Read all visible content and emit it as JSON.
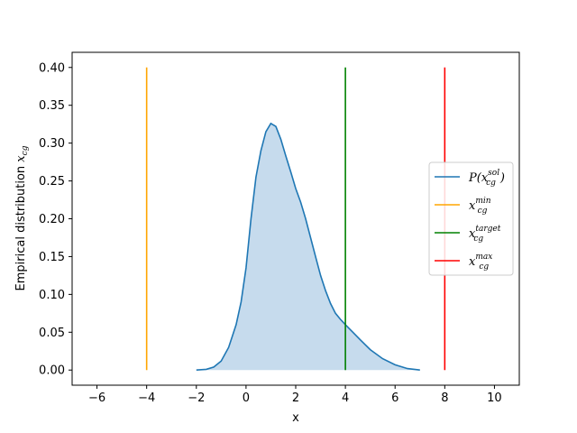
{
  "chart_data": {
    "type": "area",
    "xlabel": "x",
    "ylabel": "Empirical distribution x_cg",
    "ylabel_main": "Empirical distribution ",
    "ylabel_var": "x",
    "ylabel_sub": "cg",
    "xlim": [
      -7,
      11
    ],
    "ylim": [
      -0.02,
      0.42
    ],
    "xticks": [
      -6,
      -4,
      -2,
      0,
      2,
      4,
      6,
      8,
      10
    ],
    "xtick_labels": [
      "−6",
      "−4",
      "−2",
      "0",
      "2",
      "4",
      "6",
      "8",
      "10"
    ],
    "yticks": [
      0.0,
      0.05,
      0.1,
      0.15,
      0.2,
      0.25,
      0.3,
      0.35,
      0.4
    ],
    "ytick_labels": [
      "0.00",
      "0.05",
      "0.10",
      "0.15",
      "0.20",
      "0.25",
      "0.30",
      "0.35",
      "0.40"
    ],
    "grid": false,
    "legend_position": "center-right",
    "density": {
      "color": "#1f77b4",
      "fill_color": "#c6dbed",
      "x": [
        -2.0,
        -1.6,
        -1.3,
        -1.0,
        -0.7,
        -0.4,
        -0.2,
        0.0,
        0.2,
        0.4,
        0.6,
        0.8,
        1.0,
        1.2,
        1.4,
        1.6,
        1.8,
        2.0,
        2.2,
        2.4,
        2.6,
        2.8,
        3.0,
        3.2,
        3.4,
        3.6,
        3.8,
        4.0,
        4.3,
        4.6,
        5.0,
        5.5,
        6.0,
        6.5,
        7.0
      ],
      "y": [
        0.0,
        0.001,
        0.004,
        0.012,
        0.03,
        0.06,
        0.09,
        0.135,
        0.2,
        0.255,
        0.29,
        0.315,
        0.326,
        0.322,
        0.305,
        0.283,
        0.262,
        0.24,
        0.222,
        0.2,
        0.175,
        0.15,
        0.125,
        0.105,
        0.088,
        0.075,
        0.067,
        0.06,
        0.05,
        0.04,
        0.027,
        0.015,
        0.007,
        0.002,
        0.0
      ]
    },
    "vlines": [
      {
        "x": -4,
        "ymin": 0.0,
        "ymax": 0.4,
        "color": "#ffa500"
      },
      {
        "x": 4,
        "ymin": 0.0,
        "ymax": 0.4,
        "color": "#008000"
      },
      {
        "x": 8,
        "ymin": 0.0,
        "ymax": 0.4,
        "color": "#ff0000"
      }
    ],
    "legend": [
      {
        "base": "P(x",
        "sub": "cg",
        "sup": "sol",
        "close": ")",
        "color": "#1f77b4"
      },
      {
        "base": "x",
        "sub": "cg",
        "sup": "min",
        "close": "",
        "color": "#ffa500"
      },
      {
        "base": "x",
        "sub": "cg",
        "sup": "target",
        "close": "",
        "color": "#008000"
      },
      {
        "base": "x",
        "sub": "cg",
        "sup": "max",
        "close": "",
        "color": "#ff0000"
      }
    ]
  }
}
